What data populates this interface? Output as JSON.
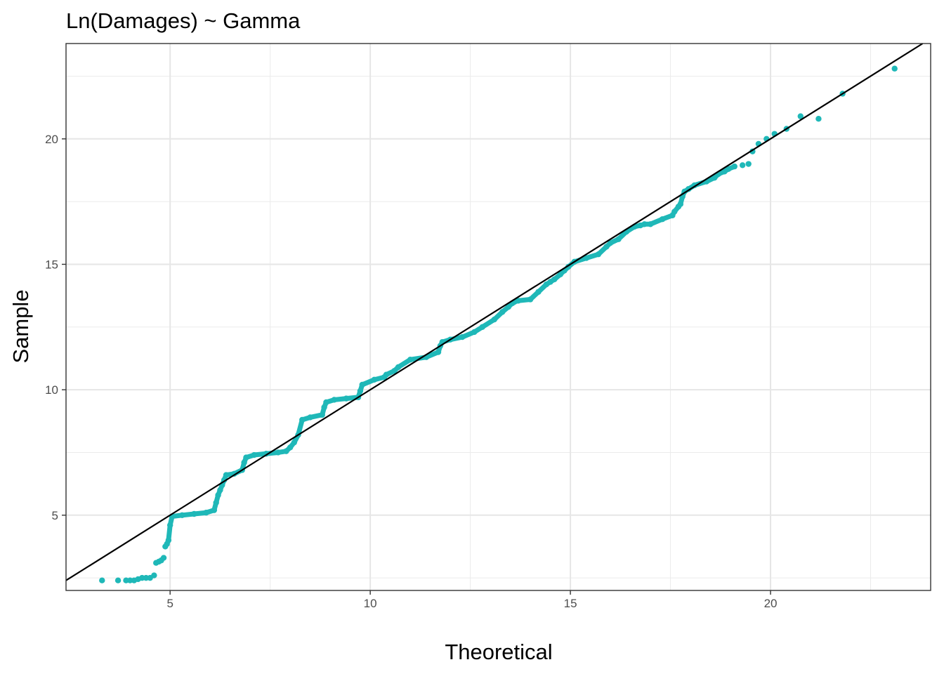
{
  "chart_data": {
    "type": "scatter",
    "title": "Ln(Damages) ~ Gamma",
    "xlabel": "Theoretical",
    "ylabel": "Sample",
    "xlim": [
      2.4,
      24.0
    ],
    "ylim": [
      2.0,
      23.8
    ],
    "x_ticks": [
      5,
      10,
      15,
      20
    ],
    "y_ticks": [
      5,
      10,
      15,
      20
    ],
    "x_minor_ticks": [
      7.5,
      12.5,
      17.5,
      22.5
    ],
    "y_minor_ticks": [
      2.5,
      7.5,
      12.5,
      17.5,
      22.5
    ],
    "x_tick_labels": [
      "5",
      "10",
      "15",
      "20"
    ],
    "y_tick_labels": [
      "5",
      "10",
      "15",
      "20"
    ],
    "grid": true,
    "legend": "none",
    "point_color": "#1FB8B8",
    "reference_line": {
      "intercept": 0,
      "slope": 1,
      "color": "#000000"
    },
    "points": {
      "x": [
        3.3,
        3.7,
        3.9,
        4.0,
        4.1,
        4.2,
        4.3,
        4.4,
        4.5,
        4.6,
        4.65,
        4.72,
        4.78,
        4.84,
        4.88,
        4.92,
        4.96,
        5.0,
        5.05,
        5.3,
        5.6,
        5.9,
        6.1,
        6.15,
        6.2,
        6.25,
        6.3,
        6.35,
        6.4,
        6.6,
        6.8,
        6.85,
        6.9,
        7.1,
        7.4,
        7.7,
        7.9,
        8.0,
        8.1,
        8.2,
        8.3,
        8.5,
        8.8,
        8.85,
        8.9,
        9.1,
        9.4,
        9.7,
        9.75,
        9.8,
        10.1,
        10.35,
        10.4,
        10.6,
        10.7,
        11.0,
        11.4,
        11.7,
        11.75,
        11.8,
        12.0,
        12.3,
        12.6,
        12.8,
        13.1,
        13.3,
        13.45,
        13.55,
        13.6,
        13.7,
        14.0,
        14.2,
        14.4,
        14.5,
        14.6,
        14.75,
        14.85,
        14.95,
        15.1,
        15.4,
        15.7,
        15.9,
        16.0,
        16.2,
        16.4,
        16.6,
        16.75,
        16.85,
        17.0,
        17.3,
        17.55,
        17.6,
        17.7,
        17.75,
        17.8,
        17.85,
        17.95,
        18.1,
        18.4,
        18.6,
        18.7,
        18.85,
        18.95,
        19.1,
        19.3,
        19.45,
        19.55,
        19.7,
        19.9,
        20.1,
        20.4,
        20.75,
        21.2,
        21.8,
        23.1
      ],
      "y": [
        2.4,
        2.4,
        2.4,
        2.4,
        2.4,
        2.45,
        2.5,
        2.5,
        2.5,
        2.6,
        3.1,
        3.15,
        3.2,
        3.3,
        3.75,
        3.85,
        4.0,
        4.6,
        4.95,
        5.0,
        5.05,
        5.1,
        5.2,
        5.5,
        5.8,
        6.0,
        6.2,
        6.4,
        6.6,
        6.65,
        6.8,
        7.1,
        7.3,
        7.4,
        7.45,
        7.5,
        7.55,
        7.7,
        7.9,
        8.2,
        8.8,
        8.9,
        9.0,
        9.3,
        9.5,
        9.6,
        9.65,
        9.7,
        9.95,
        10.2,
        10.4,
        10.5,
        10.6,
        10.75,
        10.9,
        11.2,
        11.3,
        11.5,
        11.75,
        11.9,
        12.0,
        12.1,
        12.3,
        12.5,
        12.8,
        13.1,
        13.3,
        13.45,
        13.5,
        13.55,
        13.6,
        13.9,
        14.2,
        14.3,
        14.4,
        14.6,
        14.75,
        14.9,
        15.1,
        15.25,
        15.4,
        15.7,
        15.85,
        16.0,
        16.3,
        16.5,
        16.55,
        16.6,
        16.6,
        16.8,
        16.95,
        17.1,
        17.3,
        17.4,
        17.7,
        17.9,
        18.0,
        18.15,
        18.3,
        18.45,
        18.6,
        18.7,
        18.8,
        18.9,
        18.95,
        19.0,
        19.5,
        19.8,
        20.0,
        20.2,
        20.4,
        20.9,
        20.8,
        21.8,
        22.8
      ]
    }
  }
}
